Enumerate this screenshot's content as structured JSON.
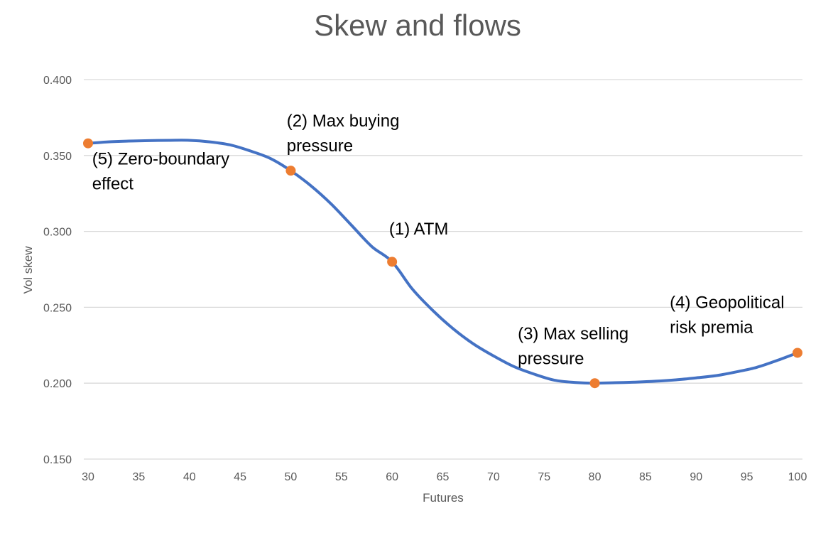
{
  "chart_data": {
    "type": "line",
    "title": "Skew and flows",
    "xlabel": "Futures",
    "ylabel": "Vol skew",
    "xlim": [
      30,
      100
    ],
    "ylim": [
      0.15,
      0.4
    ],
    "x_ticks": [
      "30",
      "35",
      "40",
      "45",
      "50",
      "55",
      "60",
      "65",
      "70",
      "75",
      "80",
      "85",
      "90",
      "95",
      "100"
    ],
    "y_ticks": [
      "0.150",
      "0.200",
      "0.250",
      "0.300",
      "0.350",
      "0.400"
    ],
    "grid": true,
    "colors": {
      "line": "#4472C4",
      "marker": "#ED7D31",
      "text": "#595959"
    },
    "series": [
      {
        "x": [
          30,
          32,
          34,
          36,
          38,
          40,
          42,
          44,
          46,
          48,
          50,
          52,
          54,
          56,
          58,
          60,
          62,
          64,
          66,
          68,
          70,
          72,
          74,
          76,
          78,
          80,
          82,
          84,
          86,
          88,
          90,
          92,
          94,
          96,
          98,
          100
        ],
        "values": [
          0.358,
          0.359,
          0.3595,
          0.3598,
          0.36,
          0.36,
          0.359,
          0.357,
          0.353,
          0.348,
          0.34,
          0.33,
          0.318,
          0.304,
          0.29,
          0.28,
          0.262,
          0.248,
          0.236,
          0.226,
          0.218,
          0.211,
          0.206,
          0.202,
          0.2005,
          0.2,
          0.2003,
          0.2007,
          0.2013,
          0.2022,
          0.2035,
          0.205,
          0.2075,
          0.2105,
          0.215,
          0.22
        ]
      }
    ],
    "highlighted_points": [
      {
        "x": 30,
        "y": 0.358
      },
      {
        "x": 50,
        "y": 0.34
      },
      {
        "x": 60,
        "y": 0.28
      },
      {
        "x": 80,
        "y": 0.2
      },
      {
        "x": 100,
        "y": 0.22
      }
    ],
    "annotations": [
      {
        "lines": [
          "(5) Zero-boundary",
          "effect"
        ],
        "x": 30.4,
        "y": 0.344
      },
      {
        "lines": [
          "(2) Max buying",
          "pressure"
        ],
        "x": 49.6,
        "y": 0.369
      },
      {
        "lines": [
          "(1) ATM"
        ],
        "x": 59.7,
        "y": 0.298
      },
      {
        "lines": [
          "(3) Max selling",
          "pressure"
        ],
        "x": 72.4,
        "y": 0.229
      },
      {
        "lines": [
          "(4) Geopolitical",
          "risk premia"
        ],
        "x": 87.4,
        "y": 0.2495
      }
    ]
  }
}
